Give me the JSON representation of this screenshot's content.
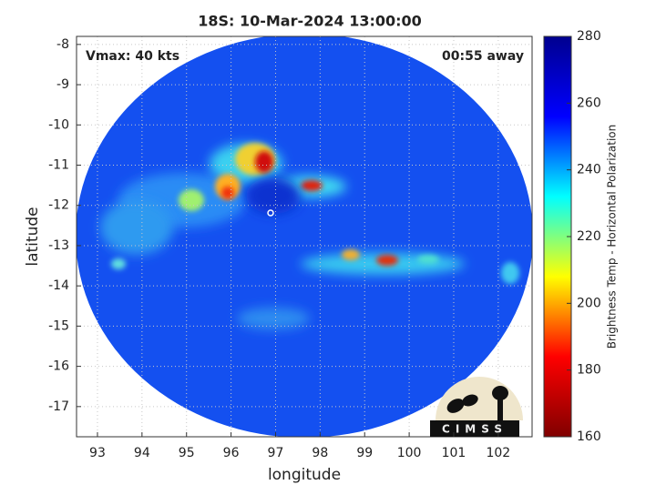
{
  "chart_data": {
    "type": "map",
    "title": "18S: 10-Mar-2024 13:00:00",
    "annotations": [
      "Vmax: 40 kts",
      "00:55 away"
    ],
    "xlabel": "longitude",
    "ylabel": "latitude",
    "xlim": [
      92.53,
      102.76
    ],
    "xticks": [
      93,
      94,
      95,
      96,
      97,
      98,
      99,
      100,
      101,
      102
    ],
    "ylim": [
      -17.75,
      -7.8
    ],
    "yticks": [
      -8,
      -9,
      -10,
      -11,
      -12,
      -13,
      -14,
      -15,
      -16,
      -17
    ],
    "grid": true,
    "colorbar": {
      "label": "Brightness Temp - Horizontal Polarization",
      "lim": [
        160,
        280
      ],
      "ticks": [
        160,
        180,
        200,
        220,
        240,
        260,
        280
      ],
      "colormap": [
        "#800000",
        "#ff0000",
        "#ffff00",
        "#00ffff",
        "#0000ff",
        "#00008f"
      ]
    },
    "logo": "CIMSS"
  }
}
